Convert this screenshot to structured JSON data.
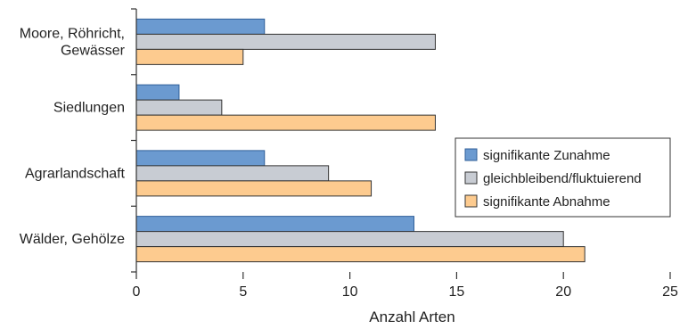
{
  "chart_data": {
    "type": "bar",
    "orientation": "horizontal",
    "categories": [
      "Moore, Röhricht,\nGewässer",
      "Siedlungen",
      "Agrarlandschaft",
      "Wälder, Gehölze"
    ],
    "series": [
      {
        "name": "signifikante Zunahme",
        "values": [
          6,
          2,
          6,
          13
        ],
        "color": "#6b9ad0",
        "stroke": "#2f5f99"
      },
      {
        "name": "gleichbleibend/fluktuierend",
        "values": [
          14,
          4,
          9,
          20
        ],
        "color": "#c8ccd3",
        "stroke": "#333333"
      },
      {
        "name": "signifikante Abnahme",
        "values": [
          5,
          14,
          11,
          21
        ],
        "color": "#fdcb8f",
        "stroke": "#333333"
      }
    ],
    "xlabel": "Anzahl Arten",
    "ylabel": "",
    "xlim": [
      0,
      25
    ],
    "xticks": [
      0,
      5,
      10,
      15,
      20,
      25
    ],
    "grid": false,
    "legend_position": "right"
  }
}
